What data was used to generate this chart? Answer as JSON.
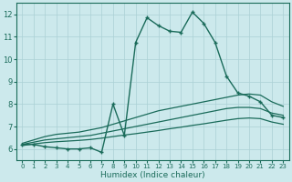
{
  "xlabel": "Humidex (Indice chaleur)",
  "xlim": [
    -0.5,
    23.5
  ],
  "ylim": [
    5.5,
    12.5
  ],
  "yticks": [
    6,
    7,
    8,
    9,
    10,
    11,
    12
  ],
  "xticks": [
    0,
    1,
    2,
    3,
    4,
    5,
    6,
    7,
    8,
    9,
    10,
    11,
    12,
    13,
    14,
    15,
    16,
    17,
    18,
    19,
    20,
    21,
    22,
    23
  ],
  "bg_color": "#cce9ec",
  "grid_color": "#aad0d4",
  "line_color": "#1a6b5a",
  "series": {
    "main": [
      6.2,
      6.2,
      6.1,
      6.05,
      6.0,
      6.0,
      6.05,
      5.85,
      8.0,
      6.6,
      10.75,
      11.85,
      11.5,
      11.25,
      11.2,
      12.1,
      11.6,
      10.75,
      9.25,
      8.5,
      8.35,
      8.1,
      7.5,
      7.4
    ],
    "trend_top": [
      6.25,
      6.4,
      6.55,
      6.65,
      6.7,
      6.75,
      6.85,
      6.95,
      7.1,
      7.25,
      7.4,
      7.55,
      7.7,
      7.8,
      7.9,
      8.0,
      8.1,
      8.2,
      8.3,
      8.4,
      8.45,
      8.4,
      8.1,
      7.9
    ],
    "trend_mid": [
      6.2,
      6.3,
      6.4,
      6.45,
      6.5,
      6.55,
      6.6,
      6.7,
      6.8,
      6.9,
      7.0,
      7.1,
      7.2,
      7.3,
      7.4,
      7.5,
      7.6,
      7.7,
      7.8,
      7.85,
      7.85,
      7.8,
      7.6,
      7.5
    ],
    "trend_bot": [
      6.15,
      6.22,
      6.28,
      6.32,
      6.35,
      6.38,
      6.42,
      6.48,
      6.55,
      6.62,
      6.68,
      6.75,
      6.82,
      6.9,
      6.97,
      7.05,
      7.12,
      7.2,
      7.28,
      7.35,
      7.38,
      7.35,
      7.2,
      7.1
    ]
  }
}
